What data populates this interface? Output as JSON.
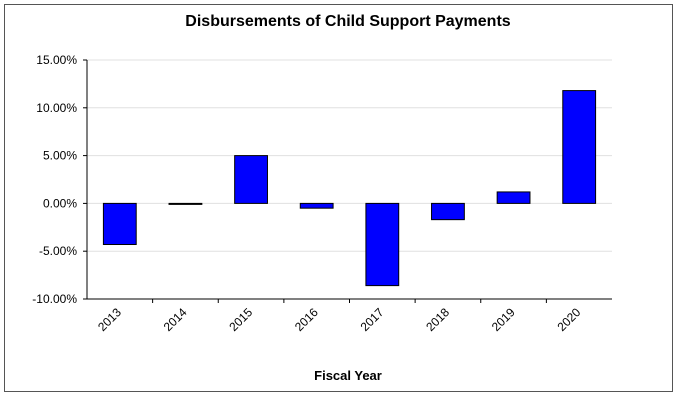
{
  "chart_data": {
    "type": "bar",
    "title": "Disbursements of Child Support Payments",
    "xlabel": "Fiscal Year",
    "ylabel": "",
    "categories": [
      "2013",
      "2014",
      "2015",
      "2016",
      "2017",
      "2018",
      "2019",
      "2020"
    ],
    "values": [
      -4.3,
      -0.1,
      5.0,
      -0.5,
      -8.6,
      -1.7,
      1.2,
      11.8
    ],
    "ylim": [
      -10,
      15
    ],
    "yticks": [
      15,
      10,
      5,
      0,
      -5,
      -10
    ],
    "ytick_labels": [
      "15.00%",
      "10.00%",
      "5.00%",
      "0.00%",
      "-5.00%",
      "-10.00%"
    ],
    "grid": true,
    "legend": "none",
    "colors": {
      "bar": "#0000ff",
      "bar_stroke": "#000000",
      "grid": "#e0e0e0",
      "axis": "#000000"
    }
  }
}
